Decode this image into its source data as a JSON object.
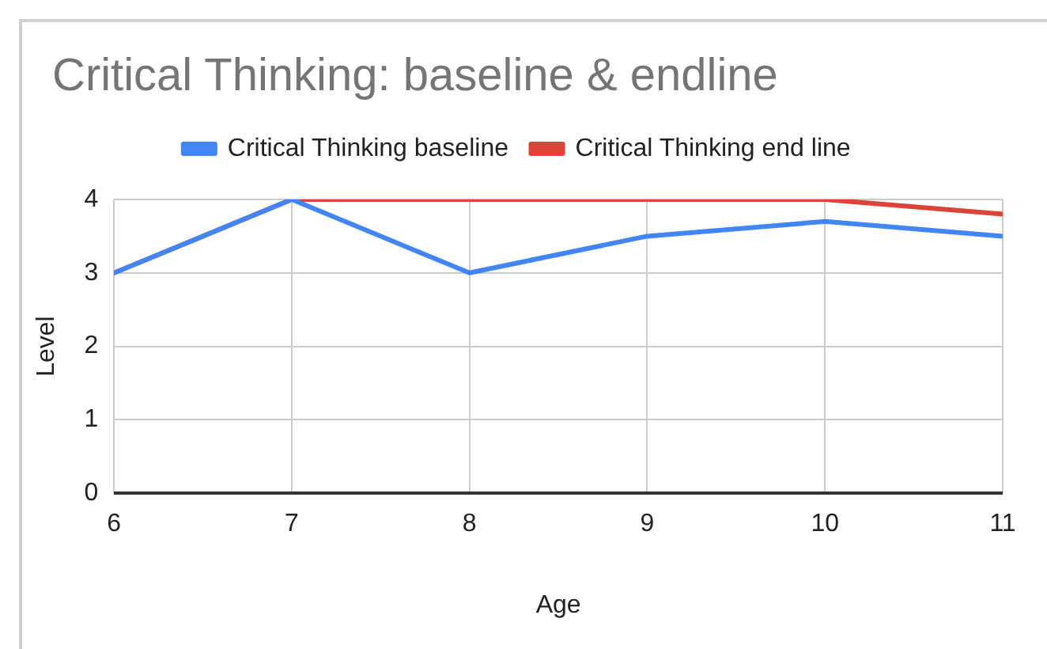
{
  "chart_data": {
    "type": "line",
    "title": "Critical Thinking: baseline & endline",
    "xlabel": "Age",
    "ylabel": "Level",
    "x": [
      6,
      7,
      8,
      9,
      10,
      11
    ],
    "series": [
      {
        "name": "Critical Thinking baseline",
        "color": "#4285f4",
        "values": [
          3,
          4,
          3,
          3.5,
          3.7,
          3.5
        ]
      },
      {
        "name": "Critical Thinking end line",
        "color": "#db4437",
        "values": [
          3,
          4,
          4,
          4,
          4,
          3.8
        ]
      }
    ],
    "xlim": [
      6,
      11
    ],
    "xticks": [
      6,
      7,
      8,
      9,
      10,
      11
    ],
    "ylim": [
      0,
      4
    ],
    "yticks": [
      0,
      1,
      2,
      3,
      4
    ],
    "grid": true,
    "legend": "top",
    "marker": "none",
    "line_style": "solid"
  }
}
